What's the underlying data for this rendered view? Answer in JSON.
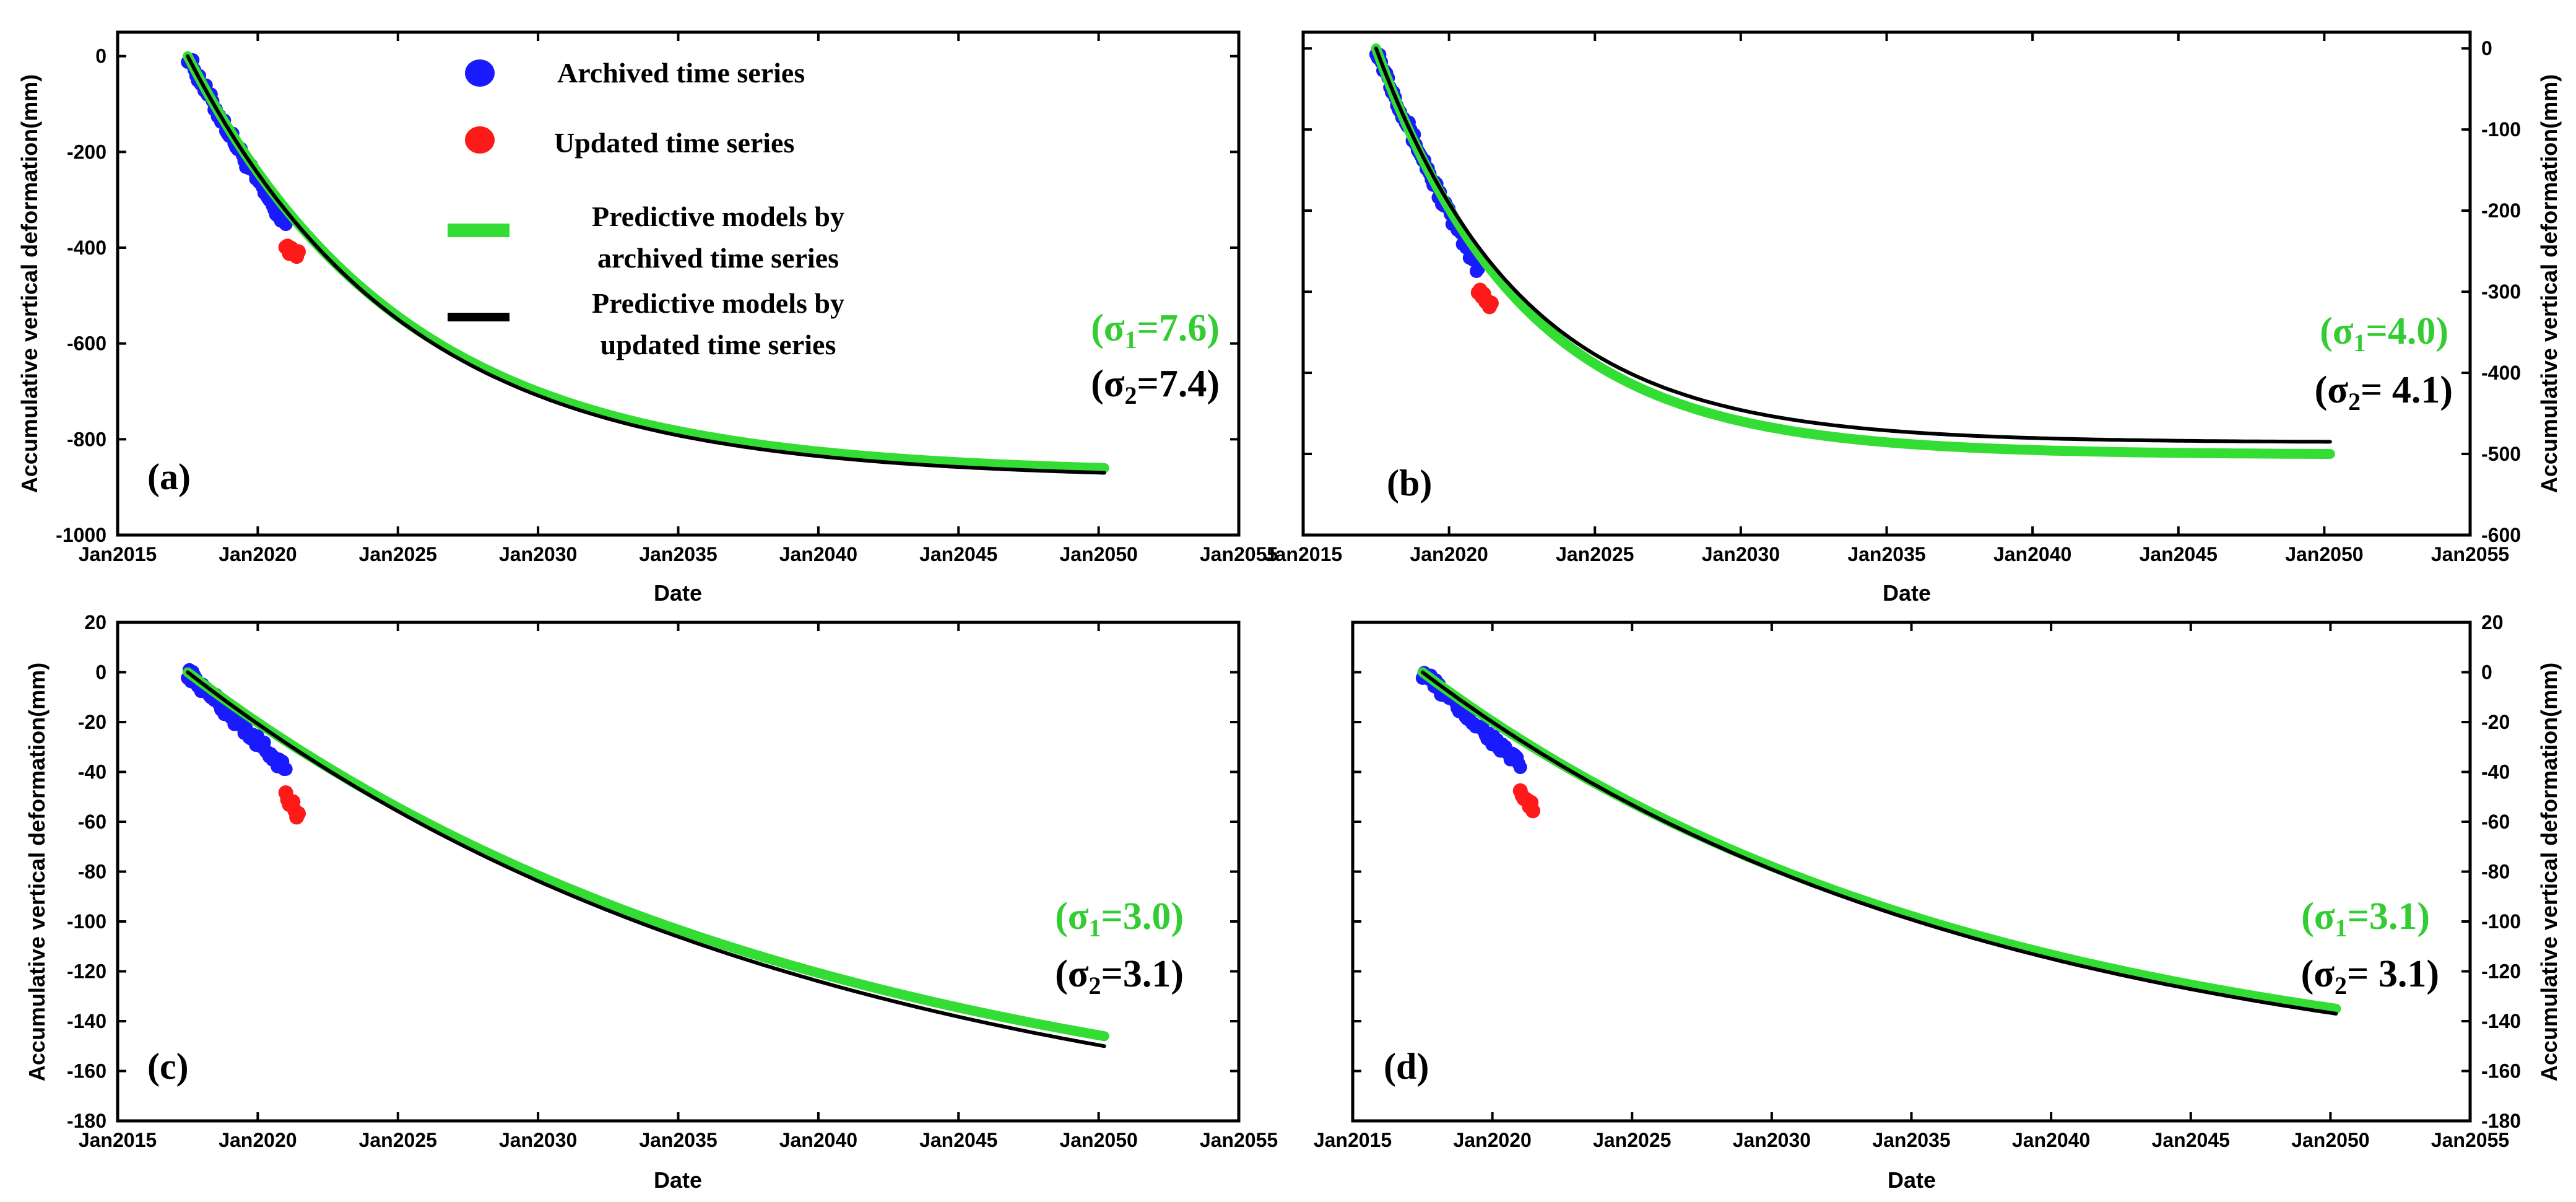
{
  "figure": {
    "colors": {
      "archived_points": "#1a1aff",
      "updated_points": "#ff1a1a",
      "archived_model": "#33dd33",
      "updated_model": "#000000",
      "sigma1_text": "#33cc33",
      "sigma2_text": "#000000"
    },
    "legend": {
      "archived": "Archived time series",
      "updated": "Updated time series",
      "model_archived_line1": "Predictive models by",
      "model_archived_line2": "archived time series",
      "model_updated_line1": "Predictive models by",
      "model_updated_line2": "updated time series"
    }
  },
  "chart_data": [
    {
      "panel": "(a)",
      "type": "line",
      "xlabel": "Date",
      "ylabel": "Accumulative vertical deformation(mm)",
      "ylabel_side": "left",
      "xlim": [
        2015,
        2055
      ],
      "ylim": [
        -1000,
        50
      ],
      "x_ticks": [
        2015,
        2020,
        2025,
        2030,
        2035,
        2040,
        2045,
        2050,
        2055
      ],
      "x_tick_labels": [
        "Jan2015",
        "Jan2020",
        "Jan2025",
        "Jan2030",
        "Jan2035",
        "Jan2040",
        "Jan2045",
        "Jan2050",
        "Jan2055"
      ],
      "y_ticks": [
        0,
        -200,
        -400,
        -600,
        -800,
        -1000
      ],
      "y_tick_labels": [
        "0",
        "-200",
        "-400",
        "-600",
        "-800",
        "-1000"
      ],
      "model": {
        "t0": 2017.5,
        "t_archived_end": 2021.0,
        "t_end": 2050.2,
        "y_start": 0,
        "y_archived_end": -395,
        "y_updated_end": -420,
        "y_end_archived_model": -860,
        "y_end_updated_model": -870,
        "curvature": 0.13
      },
      "sigma1_label": "(σ",
      "sigma1_value": "=7.6)",
      "sigma2_label": "(σ",
      "sigma2_value": "=7.4)",
      "sigma_sub1": "1",
      "sigma_sub2": "2",
      "show_legend": true
    },
    {
      "panel": "(b)",
      "type": "line",
      "xlabel": "Date",
      "ylabel": "Accumulative vertical deformation(mm)",
      "ylabel_side": "right",
      "xlim": [
        2015,
        2055
      ],
      "ylim": [
        -600,
        20
      ],
      "x_ticks": [
        2015,
        2020,
        2025,
        2030,
        2035,
        2040,
        2045,
        2050,
        2055
      ],
      "x_tick_labels": [
        "Jan2015",
        "Jan2020",
        "Jan2025",
        "Jan2030",
        "Jan2035",
        "Jan2040",
        "Jan2045",
        "Jan2050",
        "Jan2055"
      ],
      "y_ticks": [
        0,
        -100,
        -200,
        -300,
        -400,
        -500,
        -600
      ],
      "y_tick_labels": [
        "0",
        "-100",
        "-200",
        "-300",
        "-400",
        "-500",
        "-600"
      ],
      "model": {
        "t0": 2017.5,
        "t_archived_end": 2021.0,
        "t_end": 2050.2,
        "y_start": 0,
        "y_archived_end": -295,
        "y_updated_end": -318,
        "y_end_archived_model": -500,
        "y_end_updated_model": -485,
        "curvature": 0.2
      },
      "sigma1_label": "(σ",
      "sigma1_value": "=4.0)",
      "sigma2_label": "(σ",
      "sigma2_value": "= 4.1)",
      "sigma_sub1": "1",
      "sigma_sub2": "2",
      "show_legend": false
    },
    {
      "panel": "(c)",
      "type": "line",
      "xlabel": "Date",
      "ylabel": "Accumulative vertical deformation(mm)",
      "ylabel_side": "left",
      "xlim": [
        2015,
        2055
      ],
      "ylim": [
        -180,
        20
      ],
      "x_ticks": [
        2015,
        2020,
        2025,
        2030,
        2035,
        2040,
        2045,
        2050,
        2055
      ],
      "x_tick_labels": [
        "Jan2015",
        "Jan2020",
        "Jan2025",
        "Jan2030",
        "Jan2035",
        "Jan2040",
        "Jan2045",
        "Jan2050",
        "Jan2055"
      ],
      "y_ticks": [
        20,
        0,
        -20,
        -40,
        -60,
        -80,
        -100,
        -120,
        -140,
        -160,
        -180
      ],
      "y_tick_labels": [
        "20",
        "0",
        "-20",
        "-40",
        "-60",
        "-80",
        "-100",
        "-120",
        "-140",
        "-160",
        "-180"
      ],
      "model": {
        "t0": 2017.5,
        "t_archived_end": 2021.0,
        "t_end": 2050.2,
        "y_start": 0,
        "y_archived_end": -50,
        "y_updated_end": -57,
        "y_end_archived_model": -146,
        "y_end_updated_model": -150,
        "curvature": 0.045
      },
      "sigma1_label": "(σ",
      "sigma1_value": "=3.0)",
      "sigma2_label": "(σ",
      "sigma2_value": "=3.1)",
      "sigma_sub1": "1",
      "sigma_sub2": "2",
      "show_legend": false
    },
    {
      "panel": "(d)",
      "type": "line",
      "xlabel": "Date",
      "ylabel": "Accumulative vertical deformation(mm)",
      "ylabel_side": "right",
      "xlim": [
        2015,
        2055
      ],
      "ylim": [
        -180,
        20
      ],
      "x_ticks": [
        2015,
        2020,
        2025,
        2030,
        2035,
        2040,
        2045,
        2050,
        2055
      ],
      "x_tick_labels": [
        "Jan2015",
        "Jan2020",
        "Jan2025",
        "Jan2030",
        "Jan2035",
        "Jan2040",
        "Jan2045",
        "Jan2050",
        "Jan2055"
      ],
      "y_ticks": [
        20,
        0,
        -20,
        -40,
        -60,
        -80,
        -100,
        -120,
        -140,
        -160,
        -180
      ],
      "y_tick_labels": [
        "20",
        "0",
        "-20",
        "-40",
        "-60",
        "-80",
        "-100",
        "-120",
        "-140",
        "-160",
        "-180"
      ],
      "model": {
        "t0": 2017.5,
        "t_archived_end": 2021.0,
        "t_end": 2050.2,
        "y_start": 0,
        "y_archived_end": -48,
        "y_updated_end": -55,
        "y_end_archived_model": -135,
        "y_end_updated_model": -137,
        "curvature": 0.05
      },
      "sigma1_label": "(σ",
      "sigma1_value": "=3.1)",
      "sigma2_label": "(σ",
      "sigma2_value": "= 3.1)",
      "sigma_sub1": "1",
      "sigma_sub2": "2",
      "show_legend": false
    }
  ]
}
